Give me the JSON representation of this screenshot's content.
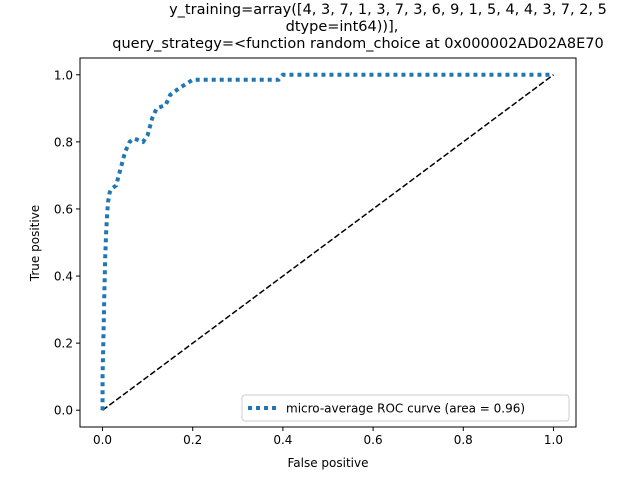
{
  "chart_data": {
    "type": "line",
    "title_lines": [
      "y_training=array([4, 3, 7, 1, 3, 7, 3, 6, 9, 1, 5, 4, 4, 3, 7, 2, 5",
      "dtype=int64))],",
      "query_strategy=<function random_choice at 0x000002AD02A8E70"
    ],
    "xlabel": "False positive",
    "ylabel": "True positive",
    "xlim": [
      -0.05,
      1.05
    ],
    "ylim": [
      -0.05,
      1.05
    ],
    "xticks": [
      "0.0",
      "0.2",
      "0.4",
      "0.6",
      "0.8",
      "1.0"
    ],
    "yticks": [
      "0.0",
      "0.2",
      "0.4",
      "0.6",
      "0.8",
      "1.0"
    ],
    "grid": false,
    "legend_location": "lower right",
    "series": [
      {
        "name": "micro-average ROC curve (area = 0.96)",
        "style": "dotted",
        "color": "#1f77b4",
        "x": [
          0.0,
          0.0,
          0.002,
          0.004,
          0.006,
          0.008,
          0.01,
          0.012,
          0.016,
          0.02,
          0.03,
          0.04,
          0.05,
          0.06,
          0.07,
          0.09,
          0.1,
          0.11,
          0.12,
          0.14,
          0.15,
          0.17,
          0.2,
          0.25,
          0.3,
          0.35,
          0.39,
          0.4,
          0.5,
          0.6,
          0.7,
          0.8,
          0.9,
          1.0
        ],
        "y": [
          0.0,
          0.1,
          0.22,
          0.35,
          0.46,
          0.53,
          0.58,
          0.62,
          0.65,
          0.66,
          0.67,
          0.72,
          0.77,
          0.8,
          0.81,
          0.8,
          0.82,
          0.87,
          0.9,
          0.91,
          0.94,
          0.96,
          0.985,
          0.985,
          0.985,
          0.985,
          0.985,
          1.0,
          1.0,
          1.0,
          1.0,
          1.0,
          1.0,
          1.0
        ]
      },
      {
        "name": "",
        "style": "dashed",
        "color": "#000000",
        "x": [
          0,
          1
        ],
        "y": [
          0,
          1
        ]
      }
    ]
  }
}
